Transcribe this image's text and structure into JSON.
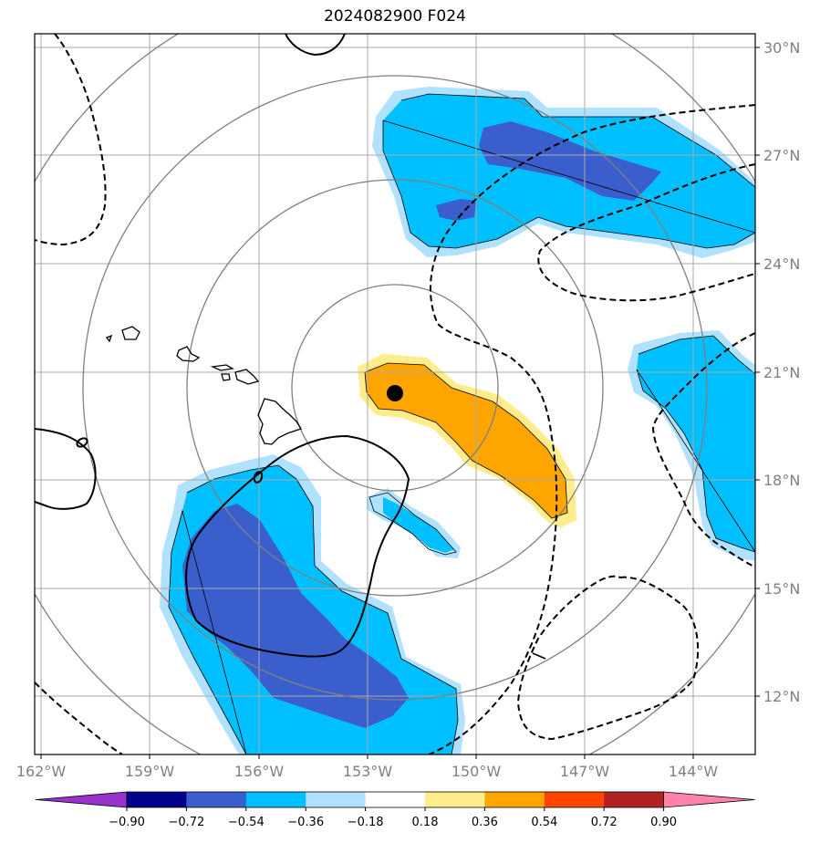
{
  "title": "2024082900 F024",
  "map": {
    "lon_labels": [
      "162°W",
      "159°W",
      "156°W",
      "153°W",
      "150°W",
      "147°W",
      "144°W"
    ],
    "lat_labels": [
      "30°N",
      "27°N",
      "24°N",
      "21°N",
      "18°N",
      "15°N",
      "12°N"
    ],
    "storm_center_marker": "black-dot",
    "range_rings": "concentric-circles",
    "coastline_color": "#000000",
    "grid_color": "#aaaaaa"
  },
  "colorbar": {
    "tick_labels": [
      "−0.90",
      "−0.72",
      "−0.54",
      "−0.36",
      "−0.18",
      "0.18",
      "0.36",
      "0.54",
      "0.72",
      "0.90"
    ],
    "colors": [
      "#9932cc",
      "#00008b",
      "#3a5fcd",
      "#00bfff",
      "#b0e2ff",
      "#ffffff",
      "#ffec8b",
      "#ffa500",
      "#ff4500",
      "#b22222",
      "#ff82ab"
    ]
  },
  "colors": {
    "dark_blue": "#3a5fcd",
    "blue": "#00bfff",
    "light_blue": "#b0e2ff",
    "light_yellow": "#ffec8b",
    "orange": "#ffa500"
  }
}
